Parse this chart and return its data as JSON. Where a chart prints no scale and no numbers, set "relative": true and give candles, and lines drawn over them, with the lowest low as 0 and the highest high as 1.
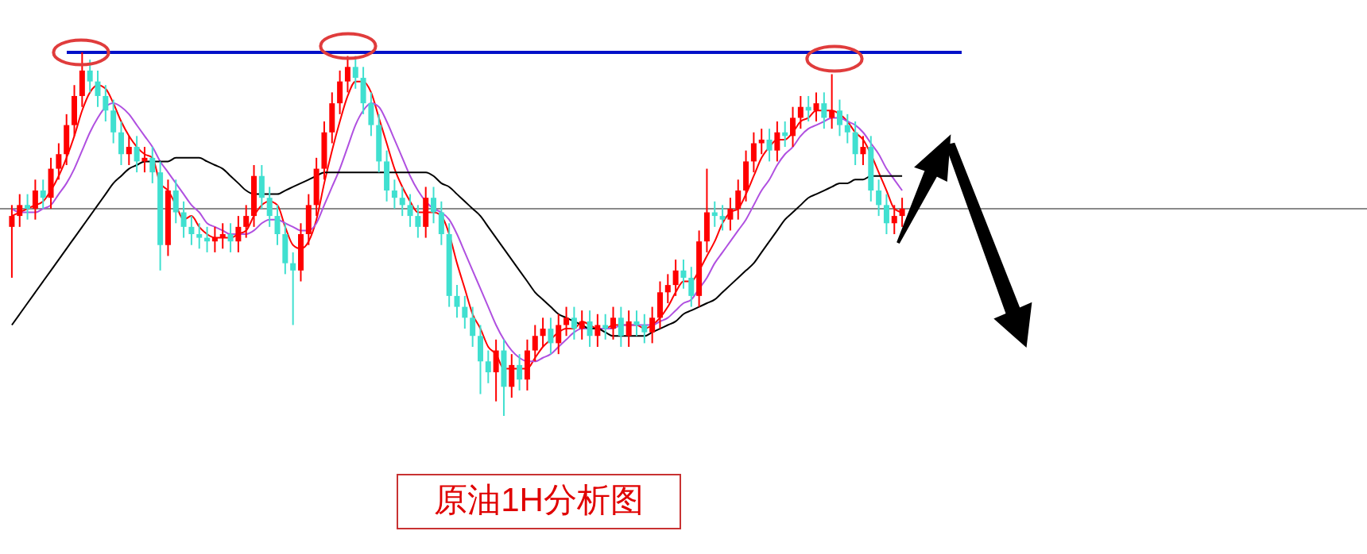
{
  "chart_data": {
    "type": "candlestick",
    "title": "原油1H分析图",
    "relative": true,
    "categories": [
      null,
      null,
      null,
      null,
      null,
      null,
      null,
      null,
      null,
      null,
      null,
      null,
      null,
      null,
      null,
      null,
      null,
      null,
      null,
      null,
      null,
      null,
      null,
      null,
      null,
      null,
      null,
      null,
      null,
      null,
      null,
      null,
      null,
      null,
      null,
      null,
      null,
      null,
      null,
      null,
      null,
      null,
      null,
      null,
      null,
      null,
      null,
      null,
      null,
      null,
      null,
      null,
      null,
      null,
      null,
      null,
      null,
      null,
      null,
      null,
      null,
      null,
      null,
      null,
      null,
      null,
      null,
      null,
      null,
      null,
      null,
      null,
      null,
      null,
      null,
      null,
      null,
      null,
      null,
      null,
      null,
      null,
      null,
      null,
      null,
      null,
      null,
      null,
      null,
      null,
      null,
      null,
      null,
      null,
      null,
      null,
      null,
      null,
      null,
      null,
      null,
      null,
      null,
      null,
      null,
      null,
      null,
      null,
      null,
      null,
      null,
      null,
      null,
      null,
      null
    ],
    "ohlc": [
      [
        0.52,
        0.58,
        0.38,
        0.55
      ],
      [
        0.55,
        0.61,
        0.52,
        0.58
      ],
      [
        0.58,
        0.61,
        0.54,
        0.57
      ],
      [
        0.57,
        0.65,
        0.54,
        0.62
      ],
      [
        0.62,
        0.65,
        0.57,
        0.6
      ],
      [
        0.6,
        0.71,
        0.57,
        0.68
      ],
      [
        0.68,
        0.75,
        0.65,
        0.72
      ],
      [
        0.72,
        0.83,
        0.69,
        0.8
      ],
      [
        0.8,
        0.91,
        0.77,
        0.88
      ],
      [
        0.88,
        1.0,
        0.85,
        0.95
      ],
      [
        0.95,
        0.98,
        0.89,
        0.92
      ],
      [
        0.92,
        0.95,
        0.85,
        0.88
      ],
      [
        0.88,
        0.91,
        0.81,
        0.84
      ],
      [
        0.84,
        0.87,
        0.75,
        0.78
      ],
      [
        0.78,
        0.81,
        0.69,
        0.72
      ],
      [
        0.72,
        0.77,
        0.69,
        0.74
      ],
      [
        0.74,
        0.77,
        0.67,
        0.7
      ],
      [
        0.7,
        0.74,
        0.67,
        0.71
      ],
      [
        0.71,
        0.74,
        0.64,
        0.67
      ],
      [
        0.67,
        0.7,
        0.4,
        0.47
      ],
      [
        0.47,
        0.65,
        0.44,
        0.62
      ],
      [
        0.62,
        0.65,
        0.53,
        0.56
      ],
      [
        0.56,
        0.59,
        0.49,
        0.52
      ],
      [
        0.52,
        0.55,
        0.47,
        0.5
      ],
      [
        0.5,
        0.53,
        0.46,
        0.49
      ],
      [
        0.49,
        0.52,
        0.45,
        0.48
      ],
      [
        0.48,
        0.52,
        0.45,
        0.49
      ],
      [
        0.49,
        0.53,
        0.46,
        0.5
      ],
      [
        0.5,
        0.53,
        0.45,
        0.48
      ],
      [
        0.48,
        0.55,
        0.45,
        0.52
      ],
      [
        0.52,
        0.58,
        0.49,
        0.55
      ],
      [
        0.55,
        0.69,
        0.52,
        0.66
      ],
      [
        0.66,
        0.69,
        0.57,
        0.6
      ],
      [
        0.6,
        0.63,
        0.52,
        0.55
      ],
      [
        0.55,
        0.58,
        0.47,
        0.5
      ],
      [
        0.5,
        0.53,
        0.39,
        0.42
      ],
      [
        0.42,
        0.45,
        0.25,
        0.4
      ],
      [
        0.4,
        0.53,
        0.37,
        0.5
      ],
      [
        0.5,
        0.61,
        0.47,
        0.58
      ],
      [
        0.58,
        0.71,
        0.55,
        0.68
      ],
      [
        0.68,
        0.81,
        0.65,
        0.78
      ],
      [
        0.78,
        0.89,
        0.75,
        0.86
      ],
      [
        0.86,
        0.95,
        0.83,
        0.92
      ],
      [
        0.92,
        0.99,
        0.89,
        0.96
      ],
      [
        0.96,
        0.99,
        0.9,
        0.93
      ],
      [
        0.93,
        0.96,
        0.83,
        0.86
      ],
      [
        0.86,
        0.89,
        0.77,
        0.8
      ],
      [
        0.8,
        0.83,
        0.67,
        0.7
      ],
      [
        0.7,
        0.73,
        0.59,
        0.62
      ],
      [
        0.62,
        0.65,
        0.57,
        0.6
      ],
      [
        0.6,
        0.63,
        0.55,
        0.58
      ],
      [
        0.58,
        0.61,
        0.52,
        0.55
      ],
      [
        0.55,
        0.58,
        0.49,
        0.52
      ],
      [
        0.52,
        0.63,
        0.49,
        0.6
      ],
      [
        0.6,
        0.63,
        0.53,
        0.56
      ],
      [
        0.56,
        0.59,
        0.47,
        0.5
      ],
      [
        0.5,
        0.53,
        0.3,
        0.33
      ],
      [
        0.33,
        0.36,
        0.27,
        0.3
      ],
      [
        0.3,
        0.33,
        0.24,
        0.27
      ],
      [
        0.27,
        0.3,
        0.19,
        0.22
      ],
      [
        0.22,
        0.25,
        0.06,
        0.15
      ],
      [
        0.15,
        0.18,
        0.09,
        0.12
      ],
      [
        0.12,
        0.21,
        0.04,
        0.18
      ],
      [
        0.18,
        0.21,
        0.0,
        0.08
      ],
      [
        0.08,
        0.17,
        0.05,
        0.14
      ],
      [
        0.14,
        0.17,
        0.07,
        0.1
      ],
      [
        0.1,
        0.21,
        0.07,
        0.18
      ],
      [
        0.18,
        0.25,
        0.15,
        0.22
      ],
      [
        0.22,
        0.27,
        0.19,
        0.24
      ],
      [
        0.24,
        0.27,
        0.17,
        0.2
      ],
      [
        0.2,
        0.28,
        0.17,
        0.25
      ],
      [
        0.25,
        0.3,
        0.22,
        0.27
      ],
      [
        0.27,
        0.3,
        0.21,
        0.24
      ],
      [
        0.24,
        0.29,
        0.21,
        0.26
      ],
      [
        0.26,
        0.29,
        0.19,
        0.22
      ],
      [
        0.22,
        0.28,
        0.19,
        0.25
      ],
      [
        0.25,
        0.28,
        0.21,
        0.24
      ],
      [
        0.24,
        0.3,
        0.21,
        0.27
      ],
      [
        0.27,
        0.3,
        0.19,
        0.22
      ],
      [
        0.22,
        0.29,
        0.19,
        0.26
      ],
      [
        0.26,
        0.29,
        0.22,
        0.25
      ],
      [
        0.25,
        0.28,
        0.2,
        0.23
      ],
      [
        0.23,
        0.3,
        0.2,
        0.27
      ],
      [
        0.27,
        0.37,
        0.24,
        0.34
      ],
      [
        0.34,
        0.39,
        0.31,
        0.36
      ],
      [
        0.36,
        0.43,
        0.33,
        0.4
      ],
      [
        0.4,
        0.43,
        0.35,
        0.38
      ],
      [
        0.38,
        0.41,
        0.3,
        0.33
      ],
      [
        0.33,
        0.51,
        0.3,
        0.48
      ],
      [
        0.48,
        0.68,
        0.45,
        0.56
      ],
      [
        0.56,
        0.59,
        0.52,
        0.55
      ],
      [
        0.55,
        0.58,
        0.51,
        0.54
      ],
      [
        0.54,
        0.6,
        0.51,
        0.57
      ],
      [
        0.57,
        0.65,
        0.54,
        0.62
      ],
      [
        0.62,
        0.73,
        0.59,
        0.7
      ],
      [
        0.7,
        0.78,
        0.67,
        0.75
      ],
      [
        0.75,
        0.79,
        0.72,
        0.76
      ],
      [
        0.76,
        0.79,
        0.7,
        0.73
      ],
      [
        0.73,
        0.81,
        0.7,
        0.78
      ],
      [
        0.78,
        0.81,
        0.74,
        0.77
      ],
      [
        0.77,
        0.85,
        0.74,
        0.82
      ],
      [
        0.82,
        0.88,
        0.79,
        0.85
      ],
      [
        0.85,
        0.88,
        0.81,
        0.84
      ],
      [
        0.84,
        0.89,
        0.81,
        0.86
      ],
      [
        0.86,
        0.89,
        0.79,
        0.82
      ],
      [
        0.82,
        0.94,
        0.79,
        0.84
      ],
      [
        0.84,
        0.87,
        0.77,
        0.8
      ],
      [
        0.8,
        0.83,
        0.75,
        0.78
      ],
      [
        0.78,
        0.81,
        0.69,
        0.72
      ],
      [
        0.72,
        0.77,
        0.69,
        0.74
      ],
      [
        0.74,
        0.77,
        0.59,
        0.62
      ],
      [
        0.62,
        0.65,
        0.55,
        0.58
      ],
      [
        0.58,
        0.61,
        0.5,
        0.53
      ],
      [
        0.53,
        0.58,
        0.5,
        0.55
      ],
      [
        0.55,
        0.6,
        0.52,
        0.57
      ]
    ],
    "colors": [
      "#ff0000",
      "#ff0000",
      "#40e0d0",
      "#ff0000",
      "#40e0d0",
      "#ff0000",
      "#ff0000",
      "#ff0000",
      "#ff0000",
      "#ff0000",
      "#40e0d0",
      "#40e0d0",
      "#40e0d0",
      "#40e0d0",
      "#40e0d0",
      "#ff0000",
      "#40e0d0",
      "#ff0000",
      "#40e0d0",
      "#40e0d0",
      "#ff0000",
      "#40e0d0",
      "#40e0d0",
      "#40e0d0",
      "#40e0d0",
      "#40e0d0",
      "#ff0000",
      "#ff0000",
      "#40e0d0",
      "#ff0000",
      "#ff0000",
      "#ff0000",
      "#40e0d0",
      "#40e0d0",
      "#40e0d0",
      "#40e0d0",
      "#40e0d0",
      "#ff0000",
      "#ff0000",
      "#ff0000",
      "#ff0000",
      "#ff0000",
      "#ff0000",
      "#ff0000",
      "#40e0d0",
      "#40e0d0",
      "#40e0d0",
      "#40e0d0",
      "#40e0d0",
      "#40e0d0",
      "#40e0d0",
      "#40e0d0",
      "#40e0d0",
      "#ff0000",
      "#40e0d0",
      "#40e0d0",
      "#40e0d0",
      "#40e0d0",
      "#40e0d0",
      "#40e0d0",
      "#40e0d0",
      "#40e0d0",
      "#ff0000",
      "#40e0d0",
      "#ff0000",
      "#40e0d0",
      "#ff0000",
      "#ff0000",
      "#ff0000",
      "#40e0d0",
      "#ff0000",
      "#ff0000",
      "#40e0d0",
      "#ff0000",
      "#40e0d0",
      "#ff0000",
      "#40e0d0",
      "#ff0000",
      "#40e0d0",
      "#ff0000",
      "#40e0d0",
      "#40e0d0",
      "#ff0000",
      "#ff0000",
      "#ff0000",
      "#ff0000",
      "#40e0d0",
      "#40e0d0",
      "#ff0000",
      "#ff0000",
      "#40e0d0",
      "#40e0d0",
      "#ff0000",
      "#ff0000",
      "#ff0000",
      "#ff0000",
      "#ff0000",
      "#40e0d0",
      "#ff0000",
      "#40e0d0",
      "#ff0000",
      "#ff0000",
      "#40e0d0",
      "#ff0000",
      "#40e0d0",
      "#ff0000",
      "#40e0d0",
      "#40e0d0",
      "#40e0d0",
      "#ff0000",
      "#40e0d0",
      "#40e0d0",
      "#40e0d0",
      "#ff0000",
      "#ff0000"
    ],
    "series": [
      {
        "type": "line",
        "color": "#ff0000",
        "values": [
          0.55,
          0.56,
          0.57,
          0.58,
          0.59,
          0.62,
          0.66,
          0.71,
          0.77,
          0.84,
          0.89,
          0.91,
          0.9,
          0.86,
          0.81,
          0.77,
          0.74,
          0.72,
          0.71,
          0.64,
          0.62,
          0.58,
          0.54,
          0.55,
          0.52,
          0.5,
          0.49,
          0.49,
          0.49,
          0.5,
          0.51,
          0.55,
          0.58,
          0.59,
          0.58,
          0.52,
          0.47,
          0.46,
          0.48,
          0.54,
          0.64,
          0.73,
          0.81,
          0.88,
          0.92,
          0.92,
          0.89,
          0.82,
          0.75,
          0.68,
          0.63,
          0.59,
          0.56,
          0.56,
          0.56,
          0.55,
          0.5,
          0.42,
          0.35,
          0.28,
          0.24,
          0.19,
          0.17,
          0.13,
          0.13,
          0.13,
          0.13,
          0.16,
          0.19,
          0.21,
          0.23,
          0.24,
          0.24,
          0.26,
          0.25,
          0.24,
          0.24,
          0.25,
          0.25,
          0.25,
          0.25,
          0.24,
          0.25,
          0.27,
          0.3,
          0.34,
          0.37,
          0.37,
          0.4,
          0.44,
          0.48,
          0.53,
          0.56,
          0.57,
          0.61,
          0.66,
          0.71,
          0.74,
          0.76,
          0.76,
          0.78,
          0.81,
          0.82,
          0.84,
          0.84,
          0.84,
          0.83,
          0.81,
          0.78,
          0.76,
          0.72,
          0.67,
          0.62,
          0.57,
          0.56
        ]
      },
      {
        "type": "line",
        "color": "#b050e0",
        "values": [
          0.57,
          0.56,
          0.56,
          0.56,
          0.57,
          0.58,
          0.61,
          0.64,
          0.68,
          0.73,
          0.78,
          0.82,
          0.85,
          0.86,
          0.85,
          0.83,
          0.8,
          0.77,
          0.74,
          0.7,
          0.67,
          0.64,
          0.61,
          0.58,
          0.56,
          0.53,
          0.52,
          0.51,
          0.5,
          0.5,
          0.5,
          0.51,
          0.53,
          0.54,
          0.54,
          0.53,
          0.52,
          0.51,
          0.51,
          0.53,
          0.58,
          0.63,
          0.68,
          0.74,
          0.8,
          0.84,
          0.86,
          0.85,
          0.81,
          0.76,
          0.71,
          0.66,
          0.62,
          0.59,
          0.57,
          0.56,
          0.54,
          0.5,
          0.45,
          0.4,
          0.35,
          0.3,
          0.25,
          0.21,
          0.18,
          0.16,
          0.15,
          0.15,
          0.16,
          0.17,
          0.19,
          0.21,
          0.23,
          0.24,
          0.24,
          0.24,
          0.24,
          0.24,
          0.25,
          0.25,
          0.25,
          0.25,
          0.25,
          0.26,
          0.27,
          0.29,
          0.31,
          0.32,
          0.35,
          0.38,
          0.42,
          0.45,
          0.48,
          0.51,
          0.54,
          0.58,
          0.62,
          0.65,
          0.69,
          0.72,
          0.74,
          0.77,
          0.79,
          0.8,
          0.81,
          0.82,
          0.82,
          0.81,
          0.8,
          0.78,
          0.75,
          0.72,
          0.68,
          0.65,
          0.62
        ]
      },
      {
        "type": "line",
        "color": "#000000",
        "values": [
          0.25,
          0.28,
          0.31,
          0.34,
          0.37,
          0.4,
          0.43,
          0.46,
          0.49,
          0.52,
          0.55,
          0.58,
          0.61,
          0.64,
          0.66,
          0.68,
          0.69,
          0.7,
          0.7,
          0.7,
          0.7,
          0.71,
          0.71,
          0.71,
          0.71,
          0.7,
          0.69,
          0.68,
          0.66,
          0.64,
          0.62,
          0.61,
          0.61,
          0.61,
          0.61,
          0.62,
          0.63,
          0.64,
          0.65,
          0.66,
          0.67,
          0.67,
          0.67,
          0.67,
          0.67,
          0.67,
          0.67,
          0.67,
          0.67,
          0.67,
          0.67,
          0.67,
          0.67,
          0.67,
          0.66,
          0.64,
          0.63,
          0.61,
          0.59,
          0.57,
          0.55,
          0.52,
          0.49,
          0.46,
          0.43,
          0.4,
          0.37,
          0.34,
          0.32,
          0.3,
          0.28,
          0.27,
          0.26,
          0.25,
          0.24,
          0.24,
          0.23,
          0.22,
          0.22,
          0.22,
          0.22,
          0.22,
          0.23,
          0.24,
          0.25,
          0.26,
          0.28,
          0.29,
          0.3,
          0.31,
          0.32,
          0.34,
          0.36,
          0.38,
          0.4,
          0.42,
          0.45,
          0.48,
          0.51,
          0.54,
          0.56,
          0.58,
          0.6,
          0.61,
          0.62,
          0.63,
          0.64,
          0.64,
          0.65,
          0.65,
          0.66,
          0.66,
          0.66,
          0.66,
          0.66
        ]
      }
    ],
    "ref_lines": [
      {
        "axis": "y",
        "value": 1.0,
        "color": "#0010c8"
      },
      {
        "axis": "y",
        "value": 0.57,
        "color": "#8a8a8a"
      }
    ]
  }
}
